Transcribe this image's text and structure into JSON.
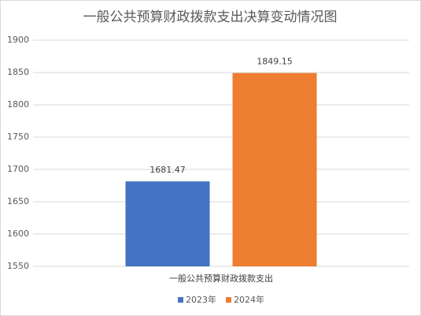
{
  "chart_data": {
    "type": "bar",
    "title": "一般公共预算财政拨款支出决算变动情况图",
    "categories": [
      "一般公共预算财政拨款支出"
    ],
    "series": [
      {
        "name": "2023年",
        "color": "#4472c4",
        "values": [
          1681.47
        ]
      },
      {
        "name": "2024年",
        "color": "#ed7d31",
        "values": [
          1849.15
        ]
      }
    ],
    "ylim": [
      1550,
      1900
    ],
    "yticks": [
      1550,
      1600,
      1650,
      1700,
      1750,
      1800,
      1850,
      1900
    ],
    "grid": true,
    "legend": "bottom"
  }
}
